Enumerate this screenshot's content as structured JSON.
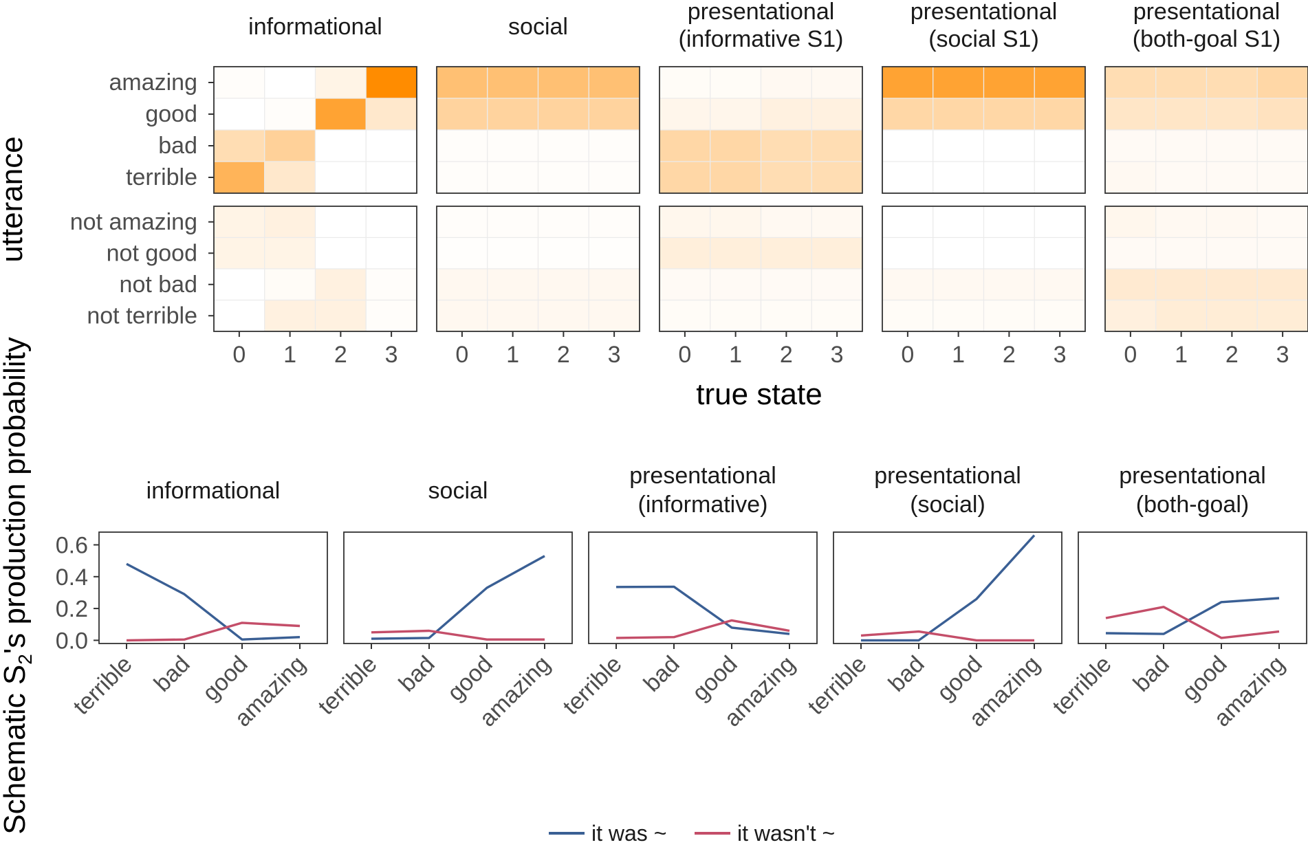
{
  "ylabel_heatmap": "utterance",
  "xlabel_heatmap": "true state",
  "ylabel_line": "Schematic S",
  "ylabel_line_sub": "2",
  "ylabel_line_rest": "'s production probability",
  "legend": [
    {
      "label": "it was ~",
      "color": "#3a5f94"
    },
    {
      "label": "it wasn't ~",
      "color": "#c44e69"
    }
  ],
  "colors": {
    "high": "#ff8c00",
    "low": "#ffffff",
    "grid": "#ebebeb",
    "border": "#333333"
  },
  "chart_data": [
    {
      "type": "heatmap",
      "panels": [
        {
          "title": [
            "informational"
          ],
          "values": [
            [
              0.02,
              0.0,
              0.1,
              1.0
            ],
            [
              0.0,
              0.02,
              0.8,
              0.2
            ],
            [
              0.3,
              0.4,
              0.0,
              0.0
            ],
            [
              0.65,
              0.2,
              0.0,
              0.0
            ],
            [
              0.1,
              0.12,
              0.0,
              0.0
            ],
            [
              0.1,
              0.1,
              0.0,
              0.0
            ],
            [
              0.0,
              0.03,
              0.12,
              0.02
            ],
            [
              0.0,
              0.12,
              0.12,
              0.02
            ]
          ]
        },
        {
          "title": [
            "social"
          ],
          "values": [
            [
              0.55,
              0.55,
              0.55,
              0.55
            ],
            [
              0.38,
              0.38,
              0.38,
              0.38
            ],
            [
              0.02,
              0.02,
              0.02,
              0.02
            ],
            [
              0.02,
              0.02,
              0.02,
              0.02
            ],
            [
              0.02,
              0.02,
              0.02,
              0.02
            ],
            [
              0.01,
              0.01,
              0.01,
              0.01
            ],
            [
              0.06,
              0.06,
              0.06,
              0.06
            ],
            [
              0.06,
              0.06,
              0.06,
              0.06
            ]
          ]
        },
        {
          "title": [
            "presentational",
            "(informative S1)"
          ],
          "values": [
            [
              0.03,
              0.03,
              0.05,
              0.05
            ],
            [
              0.08,
              0.08,
              0.12,
              0.12
            ],
            [
              0.35,
              0.35,
              0.3,
              0.3
            ],
            [
              0.35,
              0.35,
              0.3,
              0.3
            ],
            [
              0.07,
              0.07,
              0.05,
              0.05
            ],
            [
              0.14,
              0.14,
              0.14,
              0.14
            ],
            [
              0.04,
              0.04,
              0.04,
              0.04
            ],
            [
              0.03,
              0.03,
              0.03,
              0.03
            ]
          ]
        },
        {
          "title": [
            "presentational",
            "(social S1)"
          ],
          "values": [
            [
              0.8,
              0.8,
              0.8,
              0.8
            ],
            [
              0.35,
              0.35,
              0.35,
              0.35
            ],
            [
              0.0,
              0.0,
              0.0,
              0.0
            ],
            [
              0.0,
              0.0,
              0.0,
              0.0
            ],
            [
              0.0,
              0.0,
              0.0,
              0.0
            ],
            [
              0.0,
              0.0,
              0.0,
              0.0
            ],
            [
              0.05,
              0.05,
              0.05,
              0.05
            ],
            [
              0.03,
              0.03,
              0.03,
              0.03
            ]
          ]
        },
        {
          "title": [
            "presentational",
            "(both-goal S1)"
          ],
          "values": [
            [
              0.3,
              0.3,
              0.3,
              0.35
            ],
            [
              0.22,
              0.22,
              0.22,
              0.25
            ],
            [
              0.04,
              0.04,
              0.04,
              0.04
            ],
            [
              0.05,
              0.04,
              0.04,
              0.04
            ],
            [
              0.07,
              0.05,
              0.05,
              0.04
            ],
            [
              0.04,
              0.04,
              0.04,
              0.04
            ],
            [
              0.18,
              0.18,
              0.18,
              0.18
            ],
            [
              0.13,
              0.16,
              0.16,
              0.16
            ]
          ]
        }
      ],
      "rows": [
        "amazing",
        "good",
        "bad",
        "terrible",
        "not amazing",
        "not good",
        "not bad",
        "not terrible"
      ],
      "cols": [
        "0",
        "1",
        "2",
        "3"
      ]
    },
    {
      "type": "line",
      "categories": [
        "terrible",
        "bad",
        "good",
        "amazing"
      ],
      "ylim": [
        -0.02,
        0.68
      ],
      "yticks": [
        "0.0",
        "0.2",
        "0.4",
        "0.6"
      ],
      "panels": [
        {
          "title": [
            "informational"
          ],
          "series": [
            {
              "name": "it was ~",
              "values": [
                0.48,
                0.29,
                0.005,
                0.02
              ]
            },
            {
              "name": "it wasn't ~",
              "values": [
                0.0,
                0.005,
                0.11,
                0.09
              ]
            }
          ]
        },
        {
          "title": [
            "social"
          ],
          "series": [
            {
              "name": "it was ~",
              "values": [
                0.01,
                0.015,
                0.33,
                0.53
              ]
            },
            {
              "name": "it wasn't ~",
              "values": [
                0.05,
                0.06,
                0.005,
                0.005
              ]
            }
          ]
        },
        {
          "title": [
            "presentational",
            "(informative)"
          ],
          "series": [
            {
              "name": "it was ~",
              "values": [
                0.335,
                0.337,
                0.08,
                0.04
              ]
            },
            {
              "name": "it wasn't ~",
              "values": [
                0.015,
                0.02,
                0.125,
                0.06
              ]
            }
          ]
        },
        {
          "title": [
            "presentational",
            "(social)"
          ],
          "series": [
            {
              "name": "it was ~",
              "values": [
                0.0,
                0.0,
                0.26,
                0.66
              ]
            },
            {
              "name": "it wasn't ~",
              "values": [
                0.03,
                0.055,
                0.0,
                0.0
              ]
            }
          ]
        },
        {
          "title": [
            "presentational",
            "(both-goal)"
          ],
          "series": [
            {
              "name": "it was ~",
              "values": [
                0.045,
                0.04,
                0.24,
                0.265
              ]
            },
            {
              "name": "it wasn't ~",
              "values": [
                0.14,
                0.21,
                0.015,
                0.055
              ]
            }
          ]
        }
      ]
    }
  ]
}
